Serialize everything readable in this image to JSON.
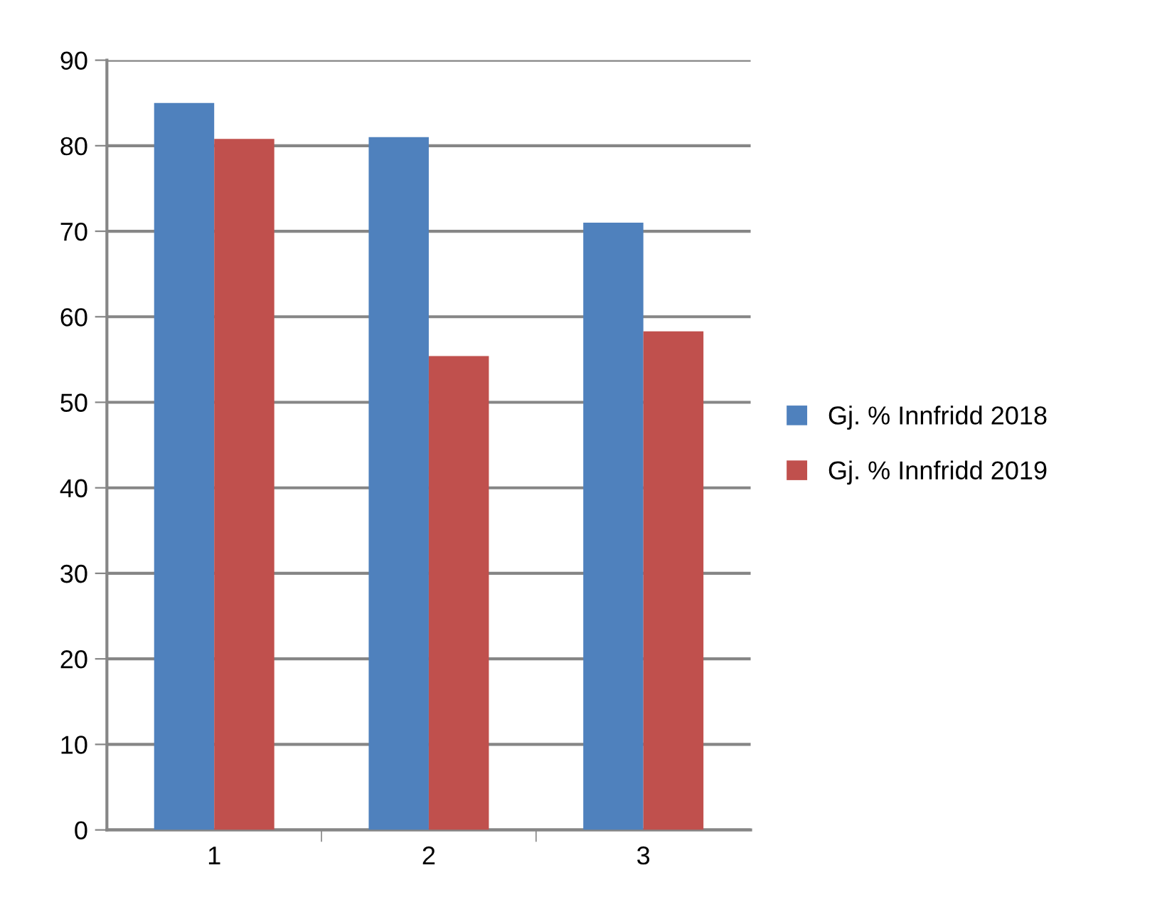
{
  "chart_data": {
    "type": "bar",
    "categories": [
      "1",
      "2",
      "3"
    ],
    "series": [
      {
        "name": "Gj. % Innfridd 2018",
        "color": "#4f81bd",
        "values": [
          85,
          81,
          71
        ]
      },
      {
        "name": "Gj. % Innfridd 2019",
        "color": "#c0504d",
        "values": [
          80.8,
          55.4,
          58.3
        ]
      }
    ],
    "ylim": [
      0,
      90
    ],
    "yticks": [
      0,
      10,
      20,
      30,
      40,
      50,
      60,
      70,
      80,
      90
    ],
    "grid": "y",
    "legend": "right"
  }
}
